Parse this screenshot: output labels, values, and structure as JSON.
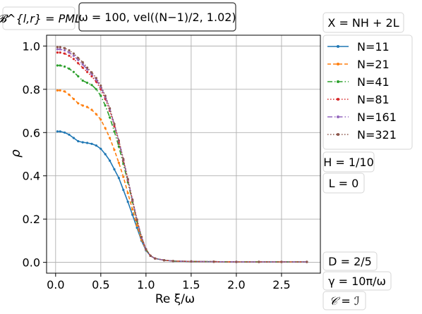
{
  "chart_data": {
    "type": "line",
    "title": "",
    "xlabel": "Re ξ/ω",
    "ylabel": "ρ",
    "xlim": [
      -0.1,
      2.93
    ],
    "ylim": [
      -0.05,
      1.05
    ],
    "x_ticks": [
      "0.0",
      "0.5",
      "1.0",
      "1.5",
      "2.0",
      "2.5"
    ],
    "x_tick_values": [
      0,
      0.5,
      1.0,
      1.5,
      2.0,
      2.5
    ],
    "y_ticks": [
      "0.0",
      "0.2",
      "0.4",
      "0.6",
      "0.8",
      "1.0"
    ],
    "y_tick_values": [
      0,
      0.2,
      0.4,
      0.6,
      0.8,
      1.0
    ],
    "grid": true,
    "legend_position": "right",
    "x": [
      0.02,
      0.05,
      0.1,
      0.15,
      0.2,
      0.25,
      0.3,
      0.35,
      0.4,
      0.45,
      0.5,
      0.55,
      0.6,
      0.65,
      0.7,
      0.75,
      0.8,
      0.85,
      0.9,
      0.95,
      1.0,
      1.05,
      1.1,
      1.2,
      1.3,
      1.5,
      1.75,
      2.0,
      2.25,
      2.5,
      2.78
    ],
    "series": [
      {
        "name": "N=11",
        "color": "#1f77b4",
        "dash": "",
        "values": [
          0.605,
          0.605,
          0.6,
          0.59,
          0.575,
          0.56,
          0.555,
          0.552,
          0.548,
          0.54,
          0.525,
          0.5,
          0.47,
          0.43,
          0.39,
          0.335,
          0.28,
          0.22,
          0.16,
          0.1,
          0.055,
          0.03,
          0.018,
          0.01,
          0.006,
          0.004,
          0.003,
          0.002,
          0.002,
          0.002,
          0.002
        ]
      },
      {
        "name": "N=21",
        "color": "#ff7f0e",
        "dash": "5,3",
        "values": [
          0.795,
          0.795,
          0.79,
          0.775,
          0.755,
          0.735,
          0.725,
          0.718,
          0.705,
          0.685,
          0.66,
          0.62,
          0.575,
          0.52,
          0.46,
          0.395,
          0.32,
          0.245,
          0.17,
          0.105,
          0.058,
          0.03,
          0.018,
          0.01,
          0.006,
          0.004,
          0.003,
          0.002,
          0.002,
          0.002,
          0.002
        ]
      },
      {
        "name": "N=41",
        "color": "#2ca02c",
        "dash": "7,3,1.5,3",
        "values": [
          0.91,
          0.91,
          0.905,
          0.895,
          0.88,
          0.86,
          0.84,
          0.83,
          0.82,
          0.8,
          0.77,
          0.725,
          0.67,
          0.605,
          0.535,
          0.455,
          0.37,
          0.28,
          0.19,
          0.115,
          0.06,
          0.03,
          0.018,
          0.01,
          0.006,
          0.004,
          0.003,
          0.002,
          0.002,
          0.002,
          0.002
        ]
      },
      {
        "name": "N=81",
        "color": "#d62728",
        "dash": "1.5,2.5",
        "values": [
          0.97,
          0.97,
          0.965,
          0.955,
          0.94,
          0.92,
          0.9,
          0.88,
          0.86,
          0.835,
          0.8,
          0.755,
          0.7,
          0.63,
          0.555,
          0.47,
          0.38,
          0.285,
          0.195,
          0.115,
          0.06,
          0.03,
          0.018,
          0.01,
          0.006,
          0.004,
          0.003,
          0.002,
          0.002,
          0.002,
          0.002
        ]
      },
      {
        "name": "N=161",
        "color": "#9467bd",
        "dash": "7,3,1.5,3",
        "values": [
          0.985,
          0.985,
          0.98,
          0.97,
          0.955,
          0.935,
          0.915,
          0.892,
          0.87,
          0.845,
          0.81,
          0.765,
          0.708,
          0.637,
          0.56,
          0.475,
          0.383,
          0.288,
          0.197,
          0.117,
          0.06,
          0.03,
          0.018,
          0.01,
          0.006,
          0.004,
          0.003,
          0.002,
          0.002,
          0.002,
          0.002
        ]
      },
      {
        "name": "N=321",
        "color": "#8c564b",
        "dash": "1.5,2.5",
        "values": [
          0.995,
          0.995,
          0.99,
          0.98,
          0.965,
          0.945,
          0.925,
          0.9,
          0.878,
          0.852,
          0.817,
          0.77,
          0.712,
          0.64,
          0.563,
          0.478,
          0.385,
          0.29,
          0.198,
          0.118,
          0.061,
          0.03,
          0.018,
          0.01,
          0.006,
          0.004,
          0.003,
          0.002,
          0.002,
          0.002,
          0.002
        ]
      }
    ],
    "annotations": {
      "bc": "𝓑^{l,r} = PML",
      "omega": "ω = 100, vel((N−1)/2, 1.02)",
      "X": "X = NH + 2L",
      "H": "H = 1/10",
      "L": "L = 0",
      "D": "D = 2/5",
      "gamma": "γ = 10π/ω",
      "C": "𝒞 = ℐ"
    }
  }
}
